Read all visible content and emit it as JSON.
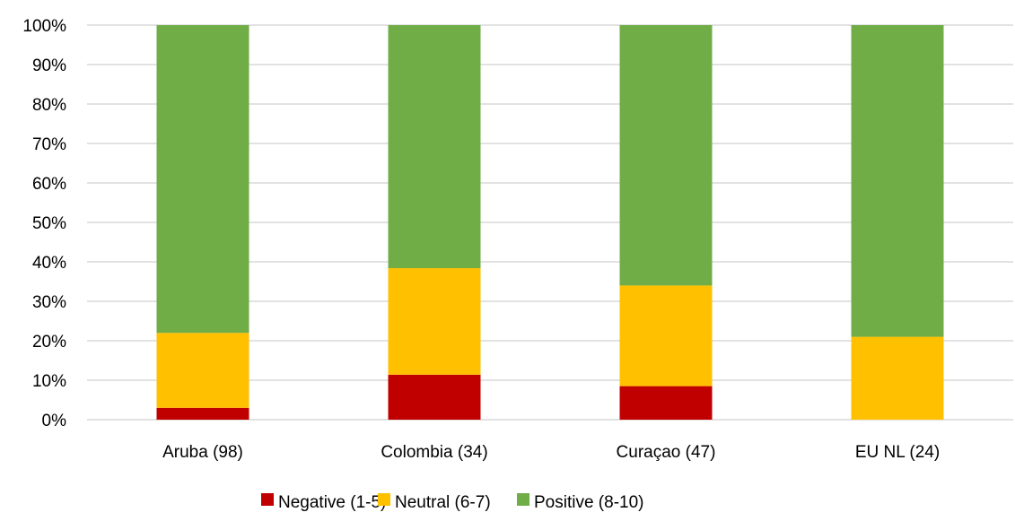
{
  "chart_data": {
    "type": "bar",
    "stacked": true,
    "percent": true,
    "categories": [
      "Aruba (98)",
      "Colombia (34)",
      "Curaçao (47)",
      "EU NL (24)"
    ],
    "series": [
      {
        "name": "Negative (1-5)",
        "color": "#C00000",
        "values": [
          0.03,
          0.114,
          0.085,
          0.0
        ]
      },
      {
        "name": "Neutral (6-7)",
        "color": "#FFC000",
        "values": [
          0.19,
          0.27,
          0.255,
          0.21
        ]
      },
      {
        "name": "Positive (8-10)",
        "color": "#70AD47",
        "values": [
          0.78,
          0.616,
          0.66,
          0.79
        ]
      }
    ],
    "yticks": [
      "0%",
      "10%",
      "20%",
      "30%",
      "40%",
      "50%",
      "60%",
      "70%",
      "80%",
      "90%",
      "100%"
    ],
    "ylim": [
      0,
      1
    ],
    "grid": true,
    "legend_position": "bottom"
  }
}
